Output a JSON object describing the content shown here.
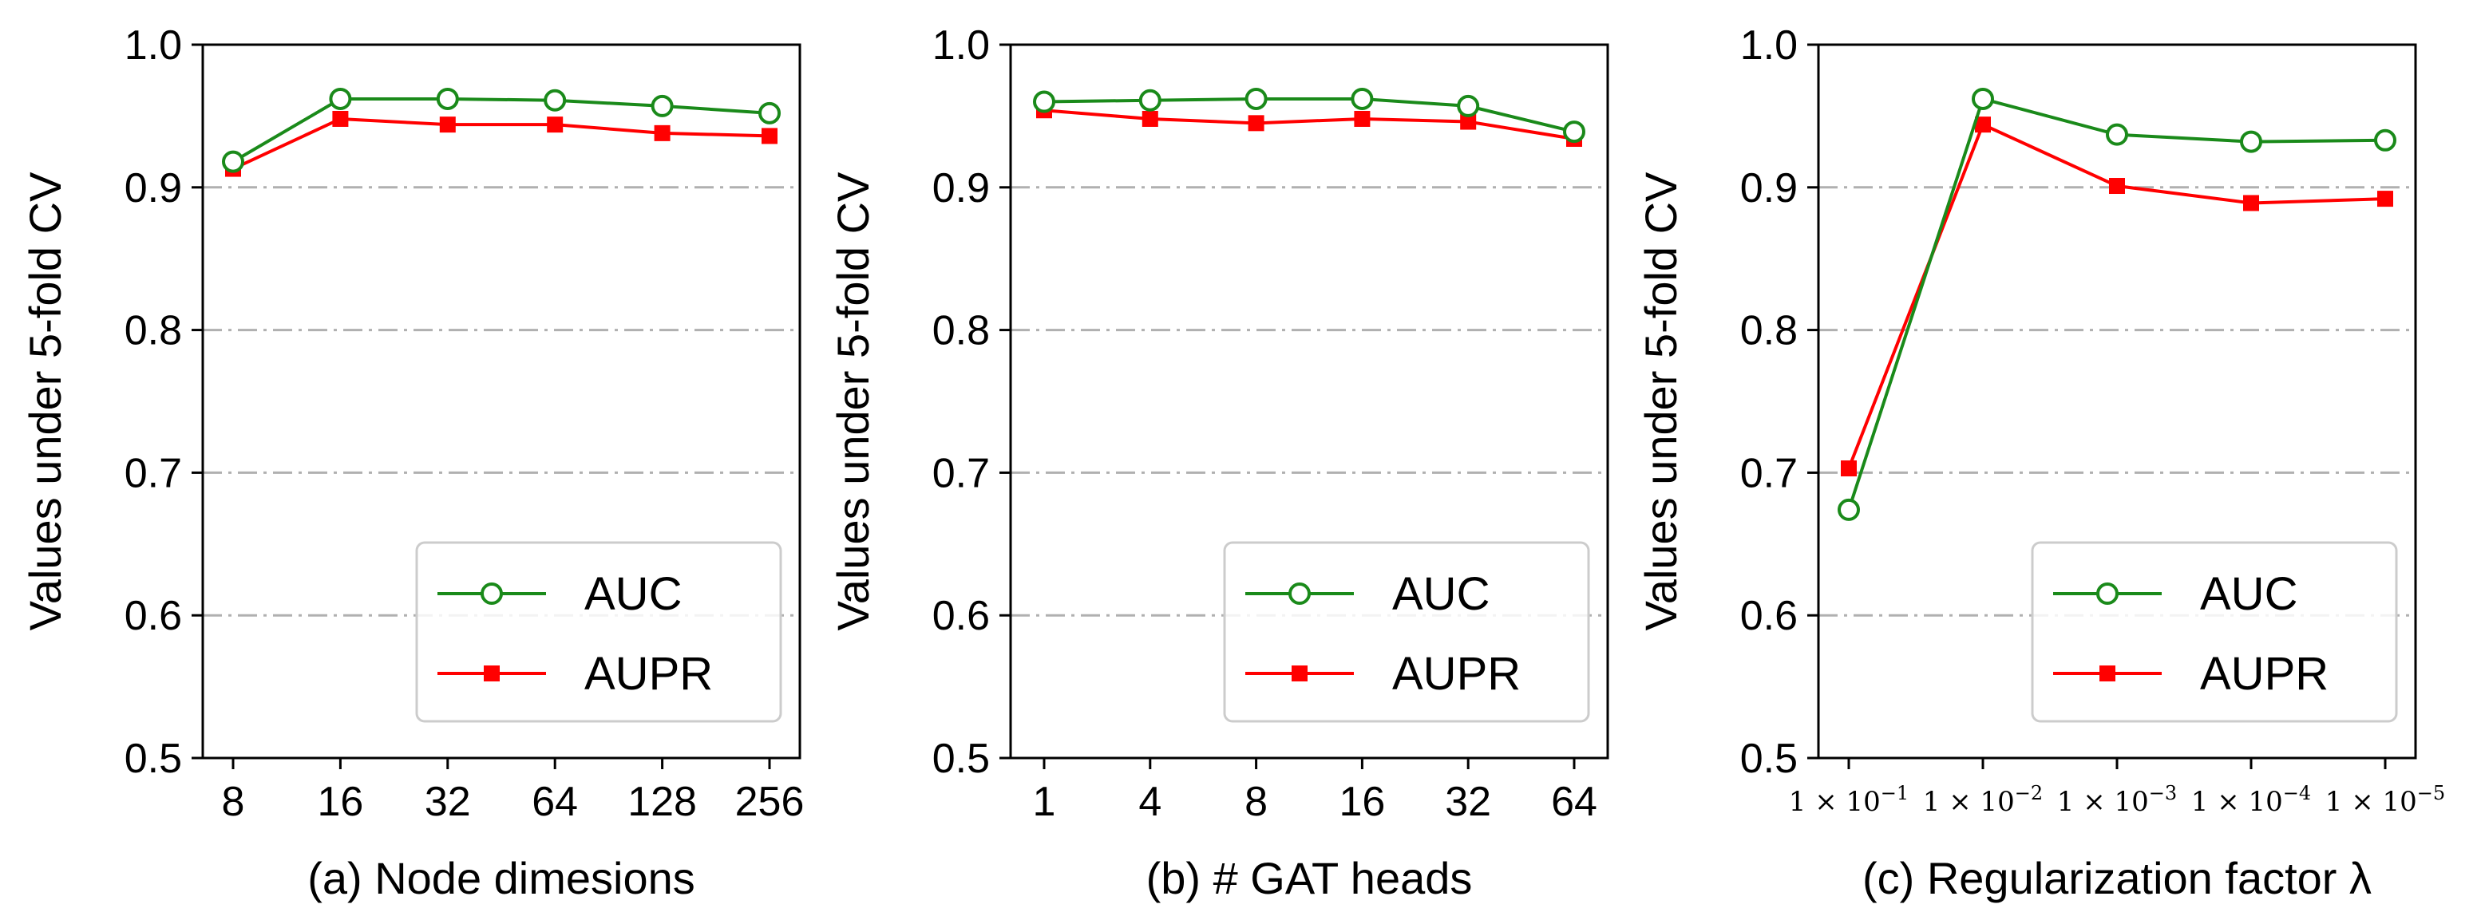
{
  "chart_data": [
    {
      "type": "line",
      "title": "",
      "xlabel": "(a) Node dimesions",
      "ylabel": "Values under 5-fold CV",
      "ylim": [
        0.5,
        1.0
      ],
      "yticks": [
        "0.5",
        "0.6",
        "0.7",
        "0.8",
        "0.9",
        "1.0"
      ],
      "categories": [
        "8",
        "16",
        "32",
        "64",
        "128",
        "256"
      ],
      "grid": "horizontal dash-dot",
      "legend_position": "lower-right",
      "series": [
        {
          "name": "AUC",
          "color": "#1a8a1a",
          "marker": "open-circle",
          "values": [
            0.918,
            0.962,
            0.962,
            0.961,
            0.957,
            0.952
          ]
        },
        {
          "name": "AUPR",
          "color": "#ff0000",
          "marker": "filled-square",
          "values": [
            0.913,
            0.948,
            0.944,
            0.944,
            0.938,
            0.936
          ]
        }
      ]
    },
    {
      "type": "line",
      "title": "",
      "xlabel": "(b) #  GAT heads",
      "ylabel": "Values under 5-fold CV",
      "ylim": [
        0.5,
        1.0
      ],
      "yticks": [
        "0.5",
        "0.6",
        "0.7",
        "0.8",
        "0.9",
        "1.0"
      ],
      "categories": [
        "1",
        "4",
        "8",
        "16",
        "32",
        "64"
      ],
      "grid": "horizontal dash-dot",
      "legend_position": "lower-right",
      "series": [
        {
          "name": "AUC",
          "color": "#1a8a1a",
          "marker": "open-circle",
          "values": [
            0.96,
            0.961,
            0.962,
            0.962,
            0.957,
            0.939
          ]
        },
        {
          "name": "AUPR",
          "color": "#ff0000",
          "marker": "filled-square",
          "values": [
            0.954,
            0.948,
            0.945,
            0.948,
            0.946,
            0.934
          ]
        }
      ]
    },
    {
      "type": "line",
      "title": "",
      "xlabel": "(c) Regularization factor λ",
      "ylabel": "Values under 5-fold CV",
      "ylim": [
        0.5,
        1.0
      ],
      "yticks": [
        "0.5",
        "0.6",
        "0.7",
        "0.8",
        "0.9",
        "1.0"
      ],
      "categories": [
        "1 × 10^-1",
        "1 × 10^-2",
        "1 × 10^-3",
        "1 × 10^-4",
        "1 × 10^-5"
      ],
      "category_parts": [
        {
          "base": "1 × 10",
          "exp": "−1"
        },
        {
          "base": "1 × 10",
          "exp": "−2"
        },
        {
          "base": "1 × 10",
          "exp": "−3"
        },
        {
          "base": "1 × 10",
          "exp": "−4"
        },
        {
          "base": "1 × 10",
          "exp": "−5"
        }
      ],
      "grid": "horizontal dash-dot",
      "legend_position": "lower-right",
      "series": [
        {
          "name": "AUC",
          "color": "#1a8a1a",
          "marker": "open-circle",
          "values": [
            0.674,
            0.962,
            0.937,
            0.932,
            0.933
          ]
        },
        {
          "name": "AUPR",
          "color": "#ff0000",
          "marker": "filled-square",
          "values": [
            0.703,
            0.944,
            0.901,
            0.889,
            0.892
          ]
        }
      ]
    }
  ]
}
